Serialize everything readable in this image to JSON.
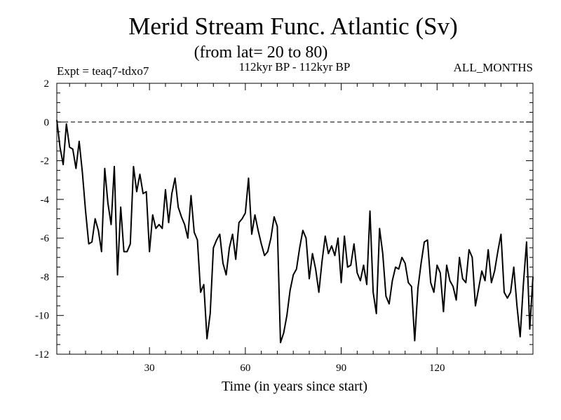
{
  "chart_data": {
    "type": "line",
    "title": "Merid Stream Func. Atlantic (Sv)",
    "subtitle": "(from lat= 20 to 80)",
    "left_note": "Expt = teaq7-tdxo7",
    "center_note": "112kyr BP - 112kyr BP",
    "right_note": "ALL_MONTHS",
    "xlabel": "Time (in years since start)",
    "ylabel": "",
    "xlim": [
      1,
      150
    ],
    "ylim": [
      -12,
      2
    ],
    "x_ticks": [
      30,
      60,
      90,
      120
    ],
    "y_ticks": [
      2,
      0,
      -2,
      -4,
      -6,
      -8,
      -10,
      -12
    ],
    "reference_line": {
      "y": 0,
      "style": "dashed"
    },
    "series": [
      {
        "name": "Merid Stream Func. Atlantic",
        "x_start": 1,
        "x_step": 1,
        "values": [
          0.1,
          -1.3,
          -2.2,
          -0.1,
          -1.3,
          -1.4,
          -2.4,
          -1.0,
          -2.6,
          -4.6,
          -6.3,
          -6.2,
          -5.0,
          -5.6,
          -6.7,
          -2.4,
          -4.2,
          -5.3,
          -2.3,
          -7.9,
          -4.4,
          -6.7,
          -6.7,
          -6.3,
          -2.3,
          -3.6,
          -2.7,
          -3.7,
          -3.6,
          -6.7,
          -4.8,
          -5.5,
          -5.3,
          -5.5,
          -3.5,
          -5.2,
          -3.7,
          -2.9,
          -4.4,
          -4.9,
          -5.3,
          -6.0,
          -3.8,
          -5.7,
          -6.1,
          -8.8,
          -8.4,
          -11.2,
          -9.9,
          -6.5,
          -6.1,
          -5.8,
          -7.3,
          -7.9,
          -6.5,
          -5.8,
          -7.1,
          -5.2,
          -5.0,
          -4.7,
          -2.9,
          -5.8,
          -4.8,
          -5.6,
          -6.3,
          -6.9,
          -6.7,
          -6.0,
          -4.9,
          -5.4,
          -11.4,
          -10.9,
          -10.0,
          -8.7,
          -7.9,
          -7.6,
          -6.5,
          -5.6,
          -6.0,
          -8.1,
          -6.8,
          -7.6,
          -8.8,
          -7.2,
          -5.9,
          -6.8,
          -6.4,
          -6.9,
          -6.0,
          -8.3,
          -5.9,
          -7.5,
          -7.4,
          -6.3,
          -7.8,
          -8.2,
          -7.4,
          -8.4,
          -4.6,
          -8.8,
          -9.9,
          -5.5,
          -6.8,
          -9.0,
          -9.4,
          -8.2,
          -7.5,
          -7.6,
          -7.0,
          -7.3,
          -8.3,
          -8.5,
          -11.3,
          -8.6,
          -7.3,
          -6.2,
          -6.1,
          -8.3,
          -8.8,
          -7.4,
          -7.8,
          -9.8,
          -7.4,
          -8.2,
          -8.5,
          -9.2,
          -7.0,
          -8.1,
          -8.3,
          -6.6,
          -7.0,
          -9.5,
          -8.6,
          -7.7,
          -8.2,
          -6.6,
          -8.3,
          -7.7,
          -6.7,
          -5.8,
          -8.8,
          -9.1,
          -8.8,
          -7.5,
          -9.5,
          -11.1,
          -8.4,
          -6.2,
          -10.7,
          -8.0
        ]
      }
    ]
  }
}
